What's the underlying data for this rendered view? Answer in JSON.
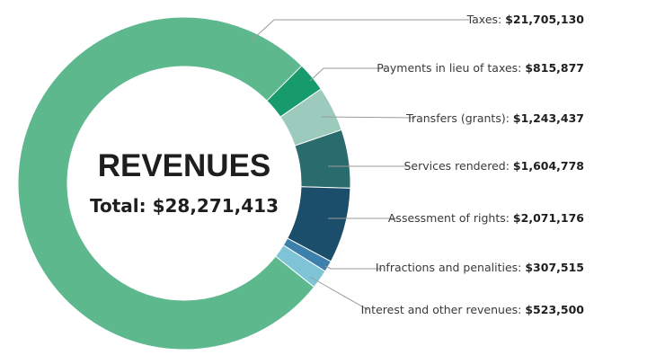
{
  "chart_data": {
    "type": "pie",
    "donut": true,
    "title": "REVENUES",
    "subtitle": "Total: $28,271,413",
    "legend": "right",
    "slices": [
      {
        "label": "Payments in lieu of taxes:",
        "value": 815877,
        "value_text": "$815,877",
        "color": "#179b6c"
      },
      {
        "label": "Transfers (grants):",
        "value": 1243437,
        "value_text": "$1,243,437",
        "color": "#9ccbbd"
      },
      {
        "label": "Services rendered:",
        "value": 1604778,
        "value_text": "$1,604,778",
        "color": "#2a6b6e"
      },
      {
        "label": "Assessment of rights:",
        "value": 2071176,
        "value_text": "$2,071,176",
        "color": "#1b4e6b"
      },
      {
        "label": "Infractions and penalities:",
        "value": 307515,
        "value_text": "$307,515",
        "color": "#3d80ab"
      },
      {
        "label": "Interest and other revenues:",
        "value": 523500,
        "value_text": "$523,500",
        "color": "#7fc3d6"
      },
      {
        "label": "Taxes:",
        "value": 21705130,
        "value_text": "$21,705,130",
        "color": "#5db88e"
      }
    ]
  }
}
